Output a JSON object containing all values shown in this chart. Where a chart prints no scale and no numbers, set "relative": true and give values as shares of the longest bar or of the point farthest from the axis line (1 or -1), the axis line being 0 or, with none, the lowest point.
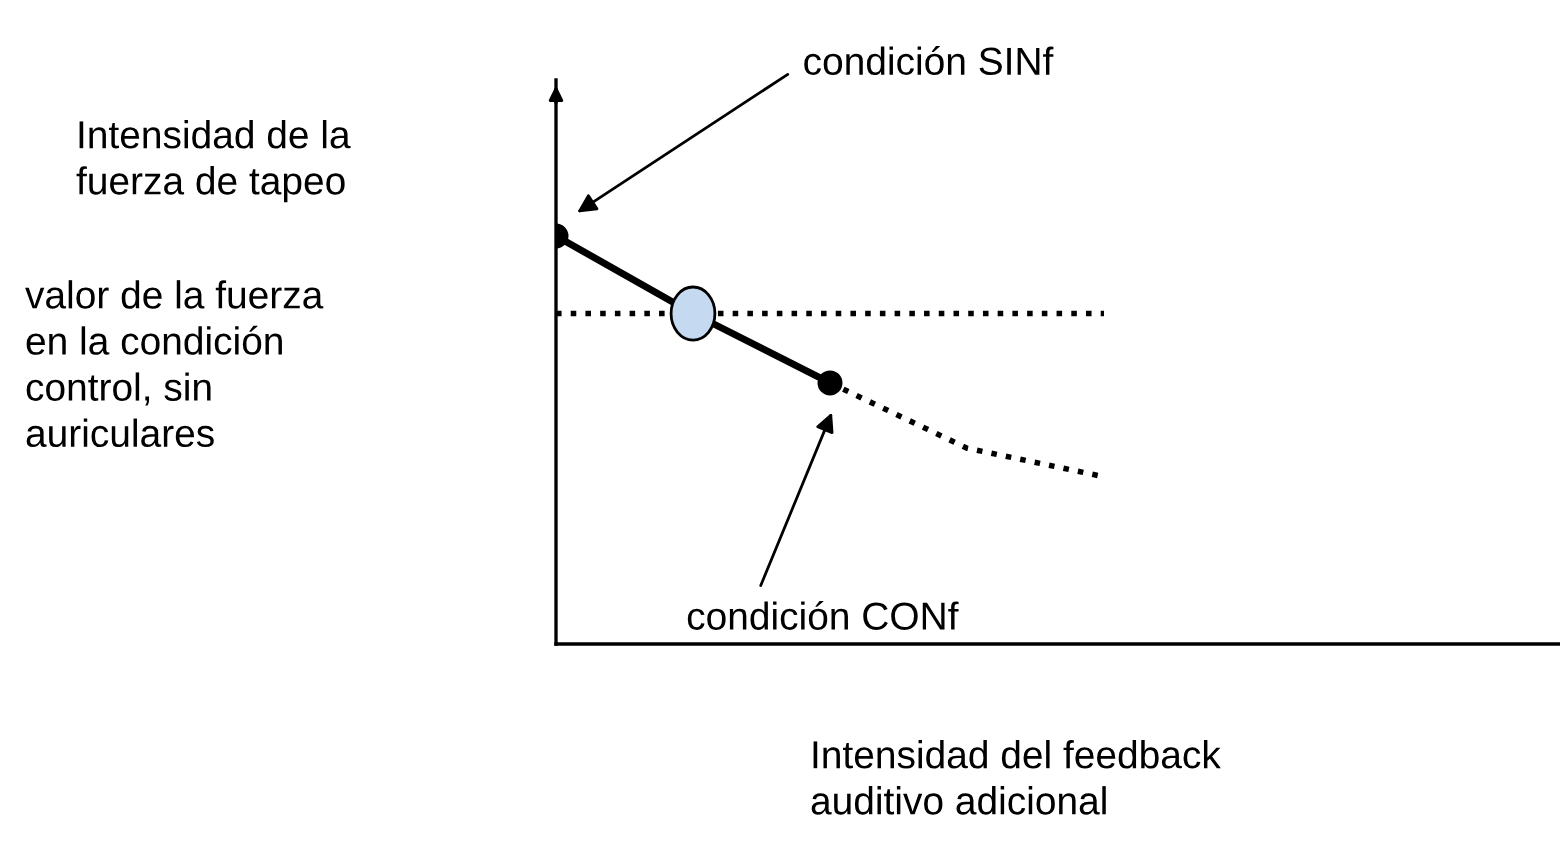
{
  "chart_data": {
    "type": "line",
    "relative": true,
    "categories": [
      null,
      null,
      null,
      null,
      null
    ],
    "series": [
      {
        "color": "#000000",
        "line_style": "solid",
        "marker": "circle",
        "values": [
          1,
          0.81,
          0.64,
          null,
          null
        ]
      },
      {
        "color": "#000000",
        "line_style": "dotted",
        "marker": "none",
        "values": [
          null,
          null,
          0.64,
          0.48,
          0.41
        ]
      }
    ],
    "ref_lines": [
      {
        "axis": "y",
        "value": 0.81,
        "label": "valor de la fuerza\nen la condición\ncontrol, sin\nauriculares",
        "line_style": "dotted",
        "color": "#000000"
      }
    ],
    "xlabel": "Intensidad del feedback\nauditivo adicional",
    "annotations": [
      "Intensidad de la\nfuerza de tapeo",
      "condición SINf",
      "condición CONf"
    ],
    "legend": false
  }
}
